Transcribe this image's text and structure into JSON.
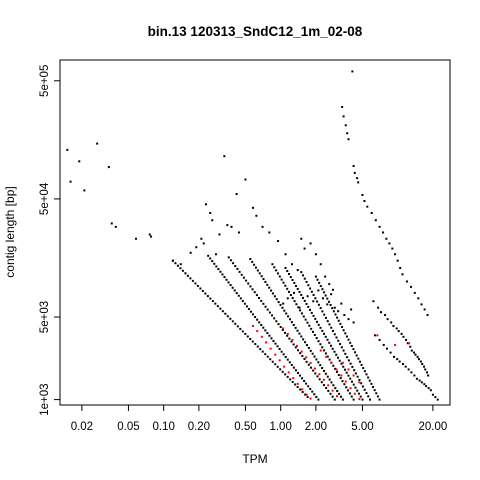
{
  "chart_data": {
    "type": "scatter",
    "title": "bin.13 120313_SndC12_1m_02-08",
    "xlabel": "TPM",
    "ylabel": "contig length [bp]",
    "x_scale": "log",
    "y_scale": "log",
    "xlim": [
      0.013,
      28
    ],
    "ylim": [
      900,
      750000
    ],
    "x_ticks": [
      {
        "value": 0.02,
        "label": "0.02"
      },
      {
        "value": 0.05,
        "label": "0.05"
      },
      {
        "value": 0.1,
        "label": "0.10"
      },
      {
        "value": 0.2,
        "label": "0.20"
      },
      {
        "value": 0.5,
        "label": "0.50"
      },
      {
        "value": 1.0,
        "label": "1.00"
      },
      {
        "value": 2.0,
        "label": "2.00"
      },
      {
        "value": 5.0,
        "label": "5.00"
      },
      {
        "value": 20.0,
        "label": "20.00"
      }
    ],
    "y_ticks": [
      {
        "value": 1000,
        "label": "1e+03"
      },
      {
        "value": 5000,
        "label": "5e+03"
      },
      {
        "value": 50000,
        "label": "5e+04"
      },
      {
        "value": 500000,
        "label": "5e+05"
      }
    ],
    "grid": false,
    "legend": "none",
    "colors": {
      "background": "#ffffff",
      "series_default": "#000000",
      "series_highlight": "#ff0000"
    },
    "series": [
      {
        "color": "#000000",
        "points": [
          [
            0.015,
            130000
          ],
          [
            0.016,
            70000
          ],
          [
            0.019,
            104000
          ],
          [
            0.021,
            59000
          ],
          [
            0.027,
            147000
          ],
          [
            0.034,
            93000
          ],
          [
            0.036,
            31000
          ],
          [
            0.039,
            29000
          ],
          [
            0.058,
            23000
          ],
          [
            0.076,
            25000
          ],
          [
            0.078,
            24000
          ],
          [
            0.12,
            15000
          ],
          [
            0.14,
            14000
          ],
          [
            0.17,
            17500
          ],
          [
            0.19,
            19500
          ],
          [
            0.21,
            23000
          ],
          [
            0.22,
            21000
          ],
          [
            0.23,
            45000
          ],
          [
            0.25,
            38000
          ],
          [
            0.26,
            33000
          ],
          [
            0.28,
            17000
          ],
          [
            0.3,
            25000
          ],
          [
            0.33,
            115000
          ],
          [
            0.35,
            30000
          ],
          [
            0.38,
            29000
          ],
          [
            0.42,
            55000
          ],
          [
            0.44,
            26000
          ],
          [
            0.5,
            73000
          ],
          [
            0.58,
            42000
          ],
          [
            0.62,
            36000
          ],
          [
            0.7,
            29000
          ],
          [
            0.8,
            26000
          ],
          [
            0.95,
            22000
          ],
          [
            1.1,
            17000
          ],
          [
            1.25,
            14000
          ],
          [
            1.4,
            12500
          ],
          [
            1.5,
            23000
          ],
          [
            1.6,
            19000
          ],
          [
            1.8,
            21000
          ],
          [
            2.0,
            17000
          ],
          [
            2.2,
            14000
          ],
          [
            2.4,
            11000
          ],
          [
            2.6,
            9500
          ],
          [
            2.8,
            8500
          ],
          [
            1.05,
            6500
          ],
          [
            1.15,
            7200
          ],
          [
            1.3,
            8000
          ],
          [
            1.45,
            6000
          ],
          [
            1.7,
            7500
          ],
          [
            1.9,
            6800
          ],
          [
            2.1,
            8400
          ],
          [
            2.3,
            7200
          ],
          [
            2.5,
            6400
          ],
          [
            2.7,
            7800
          ],
          [
            2.9,
            6000
          ],
          [
            3.1,
            5600
          ],
          [
            3.3,
            6500
          ],
          [
            3.5,
            5200
          ],
          [
            3.8,
            4800
          ],
          [
            4.0,
            5800
          ],
          [
            4.2,
            4500
          ],
          [
            3.35,
            300000
          ],
          [
            3.45,
            250000
          ],
          [
            3.6,
            210000
          ],
          [
            3.7,
            180000
          ],
          [
            3.8,
            160000
          ],
          [
            3.9,
            760000
          ],
          [
            4.1,
            600000
          ],
          [
            4.2,
            95000
          ],
          [
            4.3,
            83000
          ],
          [
            4.5,
            75000
          ],
          [
            4.6,
            69000
          ],
          [
            5.0,
            54000
          ],
          [
            5.2,
            48000
          ],
          [
            5.5,
            43000
          ],
          [
            6.0,
            38000
          ],
          [
            6.5,
            33000
          ],
          [
            7.0,
            29000
          ],
          [
            7.5,
            26000
          ],
          [
            8.0,
            23000
          ],
          [
            8.5,
            21000
          ],
          [
            9.0,
            19000
          ],
          [
            9.5,
            17000
          ],
          [
            10.0,
            15000
          ],
          [
            10.5,
            13000
          ],
          [
            11.0,
            11500
          ],
          [
            12.0,
            10000
          ],
          [
            13.0,
            9000
          ],
          [
            14.0,
            8000
          ],
          [
            15.0,
            7200
          ],
          [
            16.0,
            6400
          ],
          [
            17.0,
            5800
          ],
          [
            18.0,
            5200
          ],
          [
            6.2,
            6800
          ],
          [
            6.8,
            6000
          ],
          [
            7.2,
            5500
          ],
          [
            7.8,
            5200
          ],
          [
            8.2,
            4800
          ],
          [
            8.8,
            4500
          ],
          [
            9.2,
            4200
          ],
          [
            9.8,
            4000
          ],
          [
            10.2,
            3800
          ],
          [
            10.8,
            3600
          ],
          [
            11.2,
            3400
          ],
          [
            11.8,
            3200
          ],
          [
            12.2,
            3000
          ],
          [
            12.8,
            2800
          ],
          [
            13.2,
            2600
          ],
          [
            13.8,
            2500
          ],
          [
            14.2,
            2400
          ],
          [
            14.8,
            2300
          ],
          [
            15.2,
            2200
          ],
          [
            15.8,
            2100
          ],
          [
            16.2,
            2000
          ],
          [
            16.8,
            1900
          ],
          [
            17.2,
            1800
          ],
          [
            17.8,
            1700
          ],
          [
            18.2,
            1600
          ],
          [
            6.4,
            3500
          ],
          [
            7.0,
            3200
          ],
          [
            7.6,
            2900
          ],
          [
            8.1,
            2700
          ],
          [
            8.7,
            2500
          ],
          [
            9.3,
            2300
          ],
          [
            9.9,
            2200
          ],
          [
            10.4,
            2100
          ],
          [
            11.1,
            2000
          ],
          [
            11.7,
            1900
          ],
          [
            12.4,
            1800
          ],
          [
            13.1,
            1700
          ],
          [
            13.9,
            1600
          ],
          [
            14.6,
            1500
          ],
          [
            15.4,
            1450
          ],
          [
            16.1,
            1400
          ],
          [
            16.9,
            1350
          ],
          [
            17.5,
            1300
          ],
          [
            18.4,
            1250
          ],
          [
            19.2,
            1200
          ],
          [
            20.0,
            1100
          ],
          [
            21.0,
            1050
          ],
          [
            22.0,
            1000
          ]
        ]
      },
      {
        "color": "#ff0000",
        "points": [
          [
            0.58,
            4200
          ],
          [
            0.63,
            3800
          ],
          [
            0.69,
            3400
          ],
          [
            0.75,
            3050
          ],
          [
            0.82,
            2700
          ],
          [
            0.9,
            2400
          ],
          [
            0.98,
            2150
          ],
          [
            1.07,
            1900
          ],
          [
            1.17,
            1700
          ],
          [
            1.28,
            1520
          ],
          [
            1.4,
            1360
          ],
          [
            1.53,
            1220
          ],
          [
            1.67,
            1100
          ],
          [
            1.8,
            1020
          ],
          [
            1.05,
            4000
          ],
          [
            1.15,
            3600
          ],
          [
            1.26,
            3200
          ],
          [
            1.38,
            2850
          ],
          [
            1.51,
            2550
          ],
          [
            1.65,
            2280
          ],
          [
            1.8,
            2040
          ],
          [
            1.96,
            1830
          ],
          [
            2.14,
            1640
          ],
          [
            2.34,
            1470
          ],
          [
            2.55,
            1320
          ],
          [
            2.78,
            1190
          ],
          [
            3.03,
            1070
          ],
          [
            2.2,
            2600
          ],
          [
            2.45,
            2300
          ],
          [
            2.7,
            2050
          ],
          [
            3.0,
            1800
          ],
          [
            3.3,
            1600
          ],
          [
            3.6,
            1420
          ],
          [
            3.95,
            1250
          ],
          [
            4.3,
            1120
          ],
          [
            4.7,
            1010
          ],
          [
            3.4,
            2050
          ],
          [
            3.8,
            1800
          ],
          [
            4.2,
            1600
          ],
          [
            4.7,
            1400
          ],
          [
            6.7,
            3500
          ],
          [
            9.5,
            2900
          ],
          [
            12.5,
            3000
          ]
        ]
      }
    ],
    "diagonal_bands": [
      {
        "color": "#000000",
        "x": [
          0.12,
          1.7
        ],
        "y": [
          15000,
          1050
        ],
        "count": 55
      },
      {
        "color": "#000000",
        "x": [
          0.24,
          2.1
        ],
        "y": [
          16500,
          1000
        ],
        "count": 55
      },
      {
        "color": "#000000",
        "x": [
          0.36,
          2.9
        ],
        "y": [
          16000,
          1000
        ],
        "count": 50
      },
      {
        "color": "#000000",
        "x": [
          0.55,
          3.4
        ],
        "y": [
          15500,
          1000
        ],
        "count": 50
      },
      {
        "color": "#000000",
        "x": [
          0.85,
          4.2
        ],
        "y": [
          14000,
          1000
        ],
        "count": 45
      },
      {
        "color": "#000000",
        "x": [
          1.1,
          5.0
        ],
        "y": [
          13000,
          1000
        ],
        "count": 45
      },
      {
        "color": "#000000",
        "x": [
          1.5,
          5.8
        ],
        "y": [
          12000,
          1000
        ],
        "count": 40
      },
      {
        "color": "#000000",
        "x": [
          2.0,
          7.0
        ],
        "y": [
          11000,
          1000
        ],
        "count": 40
      }
    ]
  }
}
